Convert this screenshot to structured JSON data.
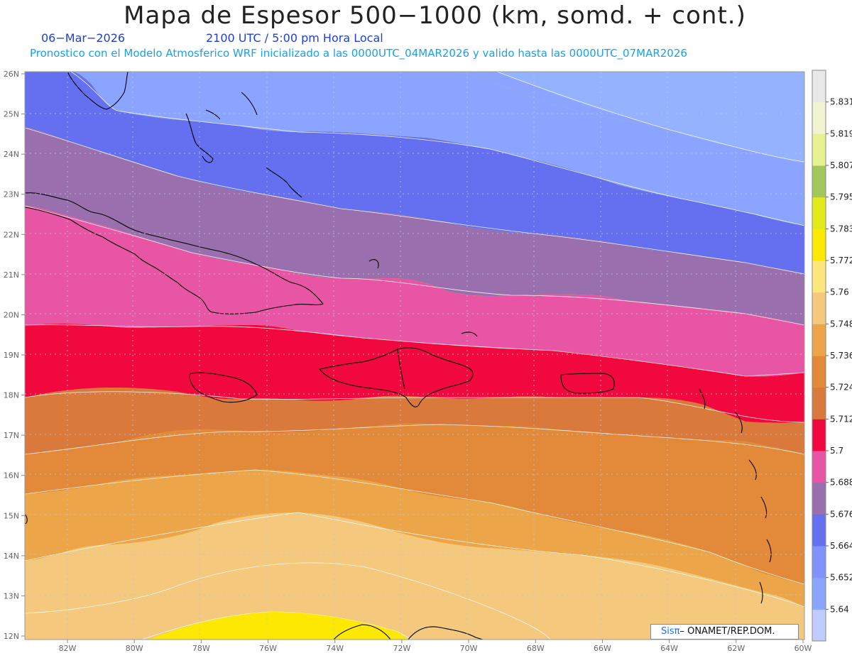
{
  "header": {
    "title": "Mapa de Espesor 500−1000 (km, somd. + cont.)",
    "date": "06−Mar−2026",
    "time": "2100 UTC / 5:00 pm Hora Local",
    "forecast_note": "Pronostico con el Modelo Atmosferico WRF inicializado a las 0000UTC_04MAR2026 y valido hasta las  0000UTC_07MAR2026"
  },
  "axes": {
    "lat_labels": [
      "26N",
      "25N",
      "24N",
      "23N",
      "22N",
      "21N",
      "20N",
      "19N",
      "18N",
      "17N",
      "16N",
      "15N",
      "14N",
      "13N",
      "12N"
    ],
    "lon_labels": [
      "82W",
      "80W",
      "78W",
      "76W",
      "74W",
      "72W",
      "70W",
      "68W",
      "66W",
      "64W",
      "62W",
      "60W"
    ]
  },
  "colorbar": {
    "levels": [
      "5.64",
      "5.652",
      "5.664",
      "5.676",
      "5.688",
      "5.7",
      "5.712",
      "5.724",
      "5.736",
      "5.748",
      "5.76",
      "5.772",
      "5.783",
      "5.795",
      "5.807",
      "5.819",
      "5.831"
    ],
    "colors": [
      "#c0ccff",
      "#8aa4ff",
      "#7f93ff",
      "#6570f0",
      "#9a6fae",
      "#e955a5",
      "#f0083e",
      "#d97a3c",
      "#e2893a",
      "#eca548",
      "#f4c87d",
      "#fde77d",
      "#fce800",
      "#e2ea1c",
      "#a4c75d",
      "#e7f18f",
      "#f1f4d0",
      "#e8e8e8"
    ]
  },
  "map_colors": {
    "band_5652": "#8aa4ff",
    "band_5664": "#6570f0",
    "band_5676": "#9a6fae",
    "band_5688": "#e955a5",
    "band_5700": "#f0083e",
    "band_5712": "#d97a3c",
    "band_5724": "#e2893a",
    "band_5736": "#eca548",
    "band_5748": "#f4c87d",
    "band_5760": "#fde77d",
    "band_5772": "#fce800",
    "coastline": "#000000",
    "contour": "#ffffff"
  },
  "credit": {
    "brand": "Sisπ",
    "org": "– ONAMET/REP.DOM."
  }
}
